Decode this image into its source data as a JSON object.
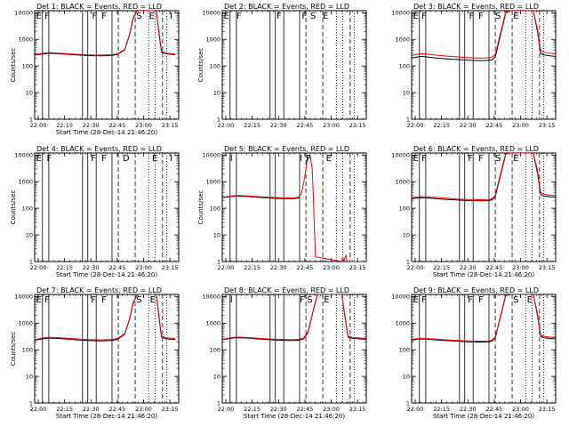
{
  "chart_data": {
    "type": "line",
    "layout": "3x3 grid",
    "xlabel": "Start Time (28-Dec-14 21:46:20)",
    "ylabel": "Counts/sec",
    "yscale": "log",
    "ylim": [
      1,
      12000
    ],
    "xlim": [
      21.966,
      23.333
    ],
    "x_tick_labels": [
      "22:00",
      "22:15",
      "22:30",
      "22:45",
      "23:00",
      "23:15"
    ],
    "x_tick_values": [
      22.0,
      22.25,
      22.5,
      22.75,
      23.0,
      23.25
    ],
    "y_tick_labels": [
      "1",
      "10",
      "100",
      "1000",
      "10000"
    ],
    "y_tick_values": [
      1,
      10,
      100,
      1000,
      10000
    ],
    "series_legend": {
      "black": "Events",
      "red": "LLD"
    },
    "colors": {
      "events": "#000000",
      "lld": "#ff0000",
      "axes": "#000000"
    },
    "markers": {
      "solid": [
        22.04,
        22.1,
        22.42,
        22.47,
        22.55,
        22.7
      ],
      "dashed": [
        22.76,
        22.92,
        23.18
      ],
      "dotted": [
        23.05,
        23.11,
        23.22
      ]
    },
    "panels": [
      {
        "title": "Det 1: BLACK = Events, RED = LLD",
        "show_xlabel": true,
        "show_ylabel": true,
        "flags": [
          {
            "t": "E",
            "x": 21.98
          },
          {
            "t": "F",
            "x": 22.06
          },
          {
            "t": "F",
            "x": 22.51
          },
          {
            "t": "F",
            "x": 22.6
          },
          {
            "t": "S",
            "x": 22.93
          },
          {
            "t": "E",
            "x": 23.05
          },
          {
            "t": "I",
            "x": 23.25
          }
        ],
        "events": {
          "x": [
            21.97,
            22.0,
            22.05,
            22.1,
            22.2,
            22.3,
            22.4,
            22.5,
            22.6,
            22.7,
            22.75,
            22.82,
            22.87,
            22.9,
            22.94,
            22.98,
            23.06,
            23.12,
            23.15,
            23.17,
            23.2,
            23.22,
            23.3
          ],
          "y": [
            260,
            270,
            285,
            300,
            290,
            270,
            255,
            245,
            240,
            250,
            270,
            400,
            1600,
            6000,
            12000,
            12000,
            12000,
            12000,
            1200,
            330,
            300,
            285,
            265
          ]
        },
        "lld": {
          "x": [
            21.97,
            22.0,
            22.05,
            22.1,
            22.2,
            22.3,
            22.4,
            22.5,
            22.6,
            22.7,
            22.75,
            22.82,
            22.87,
            22.9,
            22.94,
            22.98,
            23.06,
            23.12,
            23.15,
            23.17,
            23.2,
            23.22,
            23.3
          ],
          "y": [
            270,
            285,
            305,
            320,
            305,
            285,
            270,
            260,
            255,
            265,
            285,
            420,
            1700,
            6500,
            12000,
            12000,
            12000,
            12000,
            1400,
            360,
            320,
            300,
            280
          ]
        }
      },
      {
        "title": "Det 2: BLACK = Events, RED = LLD",
        "show_xlabel": false,
        "show_ylabel": true,
        "flags": [
          {
            "t": "E",
            "x": 21.98
          },
          {
            "t": "F",
            "x": 22.1
          },
          {
            "t": "F",
            "x": 22.48
          },
          {
            "t": "F",
            "x": 22.72
          },
          {
            "t": "S",
            "x": 22.8
          },
          {
            "t": "E",
            "x": 22.92
          }
        ],
        "events": {
          "x": [],
          "y": []
        },
        "lld": {
          "x": [],
          "y": []
        }
      },
      {
        "title": "Det 3: BLACK = Events, RED = LLD",
        "show_xlabel": false,
        "show_ylabel": false,
        "flags": [
          {
            "t": "E",
            "x": 21.98
          },
          {
            "t": "F",
            "x": 22.06
          },
          {
            "t": "F",
            "x": 22.51
          },
          {
            "t": "F",
            "x": 22.6
          },
          {
            "t": "S",
            "x": 22.76
          },
          {
            "t": "E",
            "x": 22.93
          }
        ],
        "events": {
          "x": [
            21.97,
            22.0,
            22.05,
            22.1,
            22.2,
            22.3,
            22.4,
            22.5,
            22.6,
            22.65,
            22.7,
            22.73,
            22.76,
            22.8,
            22.86,
            22.9,
            23.0,
            23.12,
            23.16,
            23.19,
            23.22,
            23.28,
            23.33
          ],
          "y": [
            200,
            210,
            230,
            220,
            200,
            185,
            175,
            165,
            160,
            160,
            165,
            170,
            220,
            1000,
            10000,
            12000,
            12000,
            12000,
            2000,
            300,
            260,
            240,
            230
          ]
        },
        "lld": {
          "x": [
            21.97,
            22.0,
            22.05,
            22.1,
            22.2,
            22.3,
            22.4,
            22.5,
            22.6,
            22.65,
            22.7,
            22.73,
            22.76,
            22.8,
            22.86,
            22.9,
            23.0,
            23.12,
            23.16,
            23.19,
            23.22,
            23.28,
            23.33
          ],
          "y": [
            250,
            265,
            290,
            280,
            255,
            235,
            220,
            205,
            200,
            200,
            205,
            215,
            270,
            1200,
            11000,
            12000,
            12000,
            12000,
            2500,
            380,
            330,
            300,
            290
          ]
        }
      },
      {
        "title": "Det 4: BLACK = Events, RED = LLD",
        "show_xlabel": true,
        "show_ylabel": true,
        "flags": [
          {
            "t": "E",
            "x": 21.98
          },
          {
            "t": "F",
            "x": 22.08
          },
          {
            "t": "F",
            "x": 22.5
          },
          {
            "t": "F",
            "x": 22.6
          },
          {
            "t": "D",
            "x": 22.8
          },
          {
            "t": "E",
            "x": 23.08
          },
          {
            "t": "I",
            "x": 23.25
          }
        ],
        "events": {
          "x": [],
          "y": []
        },
        "lld": {
          "x": [],
          "y": []
        }
      },
      {
        "title": "Det 5: BLACK = Events, RED = LLD",
        "show_xlabel": false,
        "show_ylabel": true,
        "flags": [
          {
            "t": "I",
            "x": 22.04
          },
          {
            "t": "I",
            "x": 22.7
          },
          {
            "t": "F",
            "x": 22.76
          },
          {
            "t": "E",
            "x": 22.95
          }
        ],
        "events": {
          "x": [
            21.97,
            22.0,
            22.05,
            22.1,
            22.2,
            22.3,
            22.4,
            22.5,
            22.6,
            22.65,
            22.68,
            22.7
          ],
          "y": [
            250,
            260,
            275,
            290,
            280,
            260,
            245,
            235,
            230,
            232,
            240,
            250
          ]
        },
        "lld": {
          "x": [
            21.97,
            22.0,
            22.05,
            22.1,
            22.2,
            22.3,
            22.4,
            22.5,
            22.6,
            22.65,
            22.68,
            22.7,
            22.72,
            22.75,
            22.77,
            22.8,
            22.82,
            22.83,
            22.84,
            22.85,
            23.1,
            23.11,
            23.12,
            23.14,
            23.15,
            23.3
          ],
          "y": [
            260,
            270,
            290,
            305,
            295,
            275,
            260,
            250,
            245,
            248,
            255,
            280,
            400,
            1500,
            6000,
            10000,
            3000,
            300,
            20,
            1.5,
            1,
            1.5,
            0.8,
            1.8,
            1,
            1
          ]
        }
      },
      {
        "title": "Det 6: BLACK = Events, RED = LLD",
        "show_xlabel": true,
        "show_ylabel": false,
        "flags": [
          {
            "t": "E",
            "x": 21.98
          },
          {
            "t": "F",
            "x": 22.06
          },
          {
            "t": "F",
            "x": 22.5
          },
          {
            "t": "F",
            "x": 22.6
          },
          {
            "t": "S",
            "x": 22.76
          },
          {
            "t": "E",
            "x": 22.93
          }
        ],
        "events": {
          "x": [
            21.97,
            22.0,
            22.05,
            22.1,
            22.2,
            22.3,
            22.4,
            22.5,
            22.6,
            22.65,
            22.7,
            22.73,
            22.76,
            22.8,
            22.86,
            22.9,
            23.0,
            23.12,
            23.16,
            23.19,
            23.22,
            23.28,
            23.33
          ],
          "y": [
            230,
            240,
            250,
            245,
            230,
            215,
            205,
            195,
            190,
            190,
            195,
            210,
            280,
            1200,
            11000,
            12000,
            12000,
            12000,
            2200,
            330,
            290,
            270,
            260
          ]
        },
        "lld": {
          "x": [
            21.97,
            22.0,
            22.05,
            22.1,
            22.2,
            22.3,
            22.4,
            22.5,
            22.6,
            22.65,
            22.7,
            22.73,
            22.76,
            22.8,
            22.86,
            22.9,
            23.0,
            23.12,
            23.16,
            23.19,
            23.22,
            23.28,
            23.33
          ],
          "y": [
            250,
            260,
            275,
            270,
            255,
            240,
            225,
            215,
            210,
            210,
            215,
            230,
            310,
            1400,
            12000,
            12000,
            12000,
            12000,
            2800,
            400,
            340,
            310,
            300
          ]
        }
      },
      {
        "title": "Det 7: BLACK = Events, RED = LLD",
        "show_xlabel": true,
        "show_ylabel": true,
        "flags": [
          {
            "t": "E",
            "x": 21.98
          },
          {
            "t": "F",
            "x": 22.06
          },
          {
            "t": "F",
            "x": 22.5
          },
          {
            "t": "F",
            "x": 22.6
          },
          {
            "t": "S",
            "x": 22.93
          },
          {
            "t": "E",
            "x": 23.06
          }
        ],
        "events": {
          "x": [
            21.97,
            22.0,
            22.05,
            22.1,
            22.2,
            22.3,
            22.4,
            22.5,
            22.6,
            22.7,
            22.75,
            22.82,
            22.87,
            22.9,
            22.94,
            22.98,
            23.06,
            23.12,
            23.15,
            23.17,
            23.2,
            23.22,
            23.3
          ],
          "y": [
            230,
            240,
            260,
            275,
            265,
            245,
            230,
            220,
            215,
            225,
            245,
            380,
            1500,
            5500,
            12000,
            12000,
            12000,
            12000,
            1200,
            300,
            270,
            255,
            240
          ]
        },
        "lld": {
          "x": [
            21.97,
            22.0,
            22.05,
            22.1,
            22.2,
            22.3,
            22.4,
            22.5,
            22.6,
            22.7,
            22.75,
            22.82,
            22.87,
            22.9,
            22.94,
            22.98,
            23.06,
            23.12,
            23.15,
            23.17,
            23.2,
            23.22,
            23.3
          ],
          "y": [
            240,
            255,
            280,
            295,
            285,
            265,
            250,
            240,
            235,
            245,
            265,
            400,
            1600,
            6000,
            12000,
            12000,
            12000,
            12000,
            1400,
            340,
            300,
            280,
            265
          ]
        }
      },
      {
        "title": "Det 8: BLACK = Events, RED = LLD",
        "show_xlabel": true,
        "show_ylabel": false,
        "flags": [
          {
            "t": "I",
            "x": 22.04
          },
          {
            "t": "F",
            "x": 22.7
          },
          {
            "t": "S",
            "x": 22.77
          },
          {
            "t": "E",
            "x": 22.93
          }
        ],
        "events": {
          "x": [
            21.97,
            22.0,
            22.05,
            22.1,
            22.2,
            22.3,
            22.4,
            22.5,
            22.6,
            22.65,
            22.7,
            22.74,
            22.78,
            22.83,
            22.87,
            22.9,
            23.02,
            23.1,
            23.13,
            23.16,
            23.2,
            23.28,
            23.33
          ],
          "y": [
            240,
            250,
            270,
            285,
            275,
            255,
            240,
            230,
            225,
            225,
            235,
            260,
            450,
            3000,
            12000,
            12000,
            12000,
            12000,
            1800,
            300,
            270,
            255,
            245
          ]
        },
        "lld": {
          "x": [
            21.97,
            22.0,
            22.05,
            22.1,
            22.2,
            22.3,
            22.4,
            22.5,
            22.6,
            22.65,
            22.7,
            22.74,
            22.78,
            22.83,
            22.87,
            22.9,
            23.02,
            23.1,
            23.13,
            23.16,
            23.2,
            23.28,
            23.33
          ],
          "y": [
            250,
            260,
            285,
            300,
            290,
            270,
            255,
            245,
            240,
            240,
            250,
            280,
            480,
            3200,
            12000,
            12000,
            12000,
            12000,
            2000,
            330,
            290,
            275,
            265
          ]
        }
      },
      {
        "title": "Det 9: BLACK = Events, RED = LLD",
        "show_xlabel": true,
        "show_ylabel": false,
        "flags": [
          {
            "t": "E",
            "x": 21.98
          },
          {
            "t": "F",
            "x": 22.06
          },
          {
            "t": "F",
            "x": 22.5
          },
          {
            "t": "F",
            "x": 22.6
          },
          {
            "t": "S",
            "x": 22.93
          },
          {
            "t": "E",
            "x": 23.06
          }
        ],
        "events": {
          "x": [
            21.97,
            22.0,
            22.05,
            22.1,
            22.2,
            22.3,
            22.4,
            22.5,
            22.6,
            22.65,
            22.7,
            22.73,
            22.76,
            22.8,
            22.86,
            22.9,
            23.0,
            23.12,
            23.16,
            23.19,
            23.22,
            23.28,
            23.33
          ],
          "y": [
            230,
            240,
            255,
            250,
            235,
            220,
            210,
            200,
            195,
            195,
            200,
            215,
            280,
            1200,
            11000,
            12000,
            12000,
            12000,
            2000,
            320,
            285,
            265,
            255
          ]
        },
        "lld": {
          "x": [
            21.97,
            22.0,
            22.05,
            22.1,
            22.2,
            22.3,
            22.4,
            22.5,
            22.6,
            22.65,
            22.7,
            22.73,
            22.76,
            22.8,
            22.86,
            22.9,
            23.0,
            23.12,
            23.16,
            23.19,
            23.22,
            23.28,
            23.33
          ],
          "y": [
            245,
            255,
            270,
            265,
            250,
            235,
            225,
            215,
            210,
            210,
            215,
            230,
            300,
            1300,
            12000,
            12000,
            12000,
            12000,
            2400,
            360,
            320,
            300,
            285
          ]
        }
      }
    ]
  }
}
